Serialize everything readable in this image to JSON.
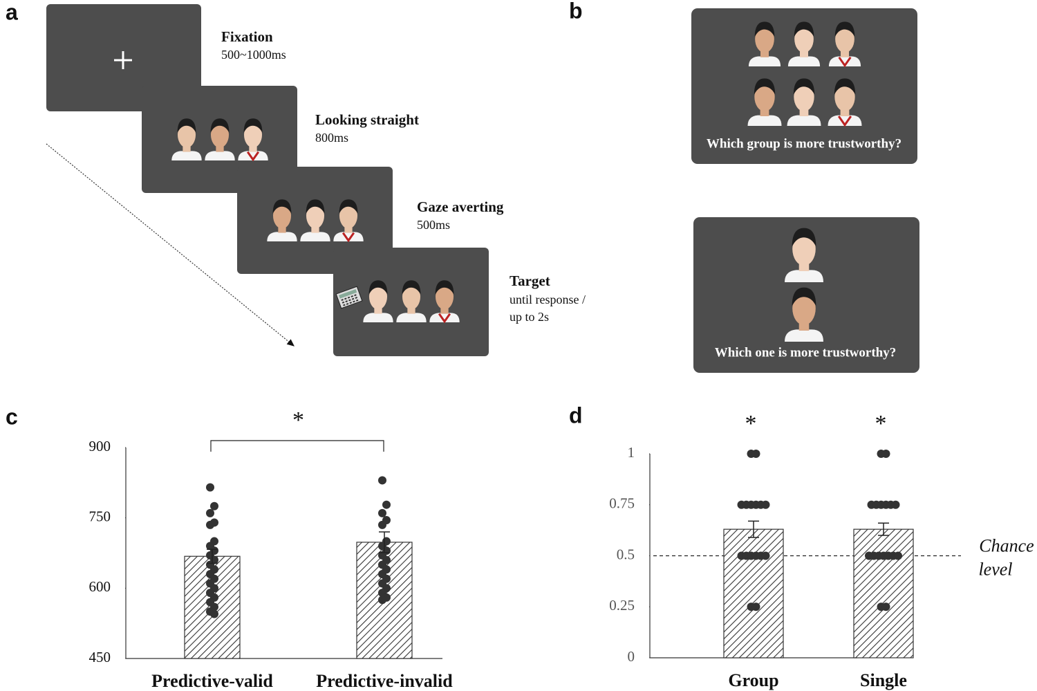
{
  "panels": {
    "a": {
      "label": "a",
      "steps": [
        {
          "title": "Fixation",
          "lines": [
            "500~1000ms"
          ]
        },
        {
          "title": "Looking straight",
          "lines": [
            "800ms"
          ]
        },
        {
          "title": "Gaze averting",
          "lines": [
            "500ms"
          ]
        },
        {
          "title": "Target",
          "lines": [
            "until response /",
            "up to 2s"
          ]
        }
      ]
    },
    "b": {
      "label": "b",
      "questions": [
        "Which group is more trustworthy?",
        "Which one is more trustworthy?"
      ]
    }
  },
  "chart_data": [
    {
      "type": "bar",
      "panel_label": "c",
      "categories": [
        "Predictive-valid",
        "Predictive-invalid"
      ],
      "values": [
        668,
        698
      ],
      "errors": [
        15,
        22
      ],
      "points": [
        [
          815,
          775,
          760,
          740,
          735,
          700,
          690,
          680,
          670,
          660,
          650,
          640,
          630,
          620,
          610,
          600,
          590,
          580,
          570,
          560,
          550,
          545
        ],
        [
          830,
          778,
          760,
          745,
          735,
          700,
          690,
          680,
          670,
          660,
          650,
          640,
          630,
          620,
          610,
          600,
          590,
          580,
          575
        ]
      ],
      "ylim": [
        450,
        900
      ],
      "yticks": [
        450,
        600,
        750,
        900
      ],
      "significance": "*"
    },
    {
      "type": "bar",
      "panel_label": "d",
      "categories": [
        "Group",
        "Single"
      ],
      "values": [
        0.63,
        0.63
      ],
      "errors": [
        0.04,
        0.03
      ],
      "points": [
        [
          1,
          1,
          0.75,
          0.75,
          0.75,
          0.75,
          0.75,
          0.75,
          0.5,
          0.5,
          0.5,
          0.5,
          0.5,
          0.5,
          0.25,
          0.25
        ],
        [
          1,
          1,
          0.75,
          0.75,
          0.75,
          0.75,
          0.75,
          0.75,
          0.5,
          0.5,
          0.5,
          0.5,
          0.5,
          0.5,
          0.5,
          0.25,
          0.25
        ]
      ],
      "ylim": [
        0,
        1
      ],
      "yticks": [
        0,
        0.25,
        0.5,
        0.75,
        1
      ],
      "reference_line": {
        "value": 0.5,
        "label": [
          "Chance",
          "level"
        ]
      },
      "significance": [
        "*",
        "*"
      ]
    }
  ]
}
